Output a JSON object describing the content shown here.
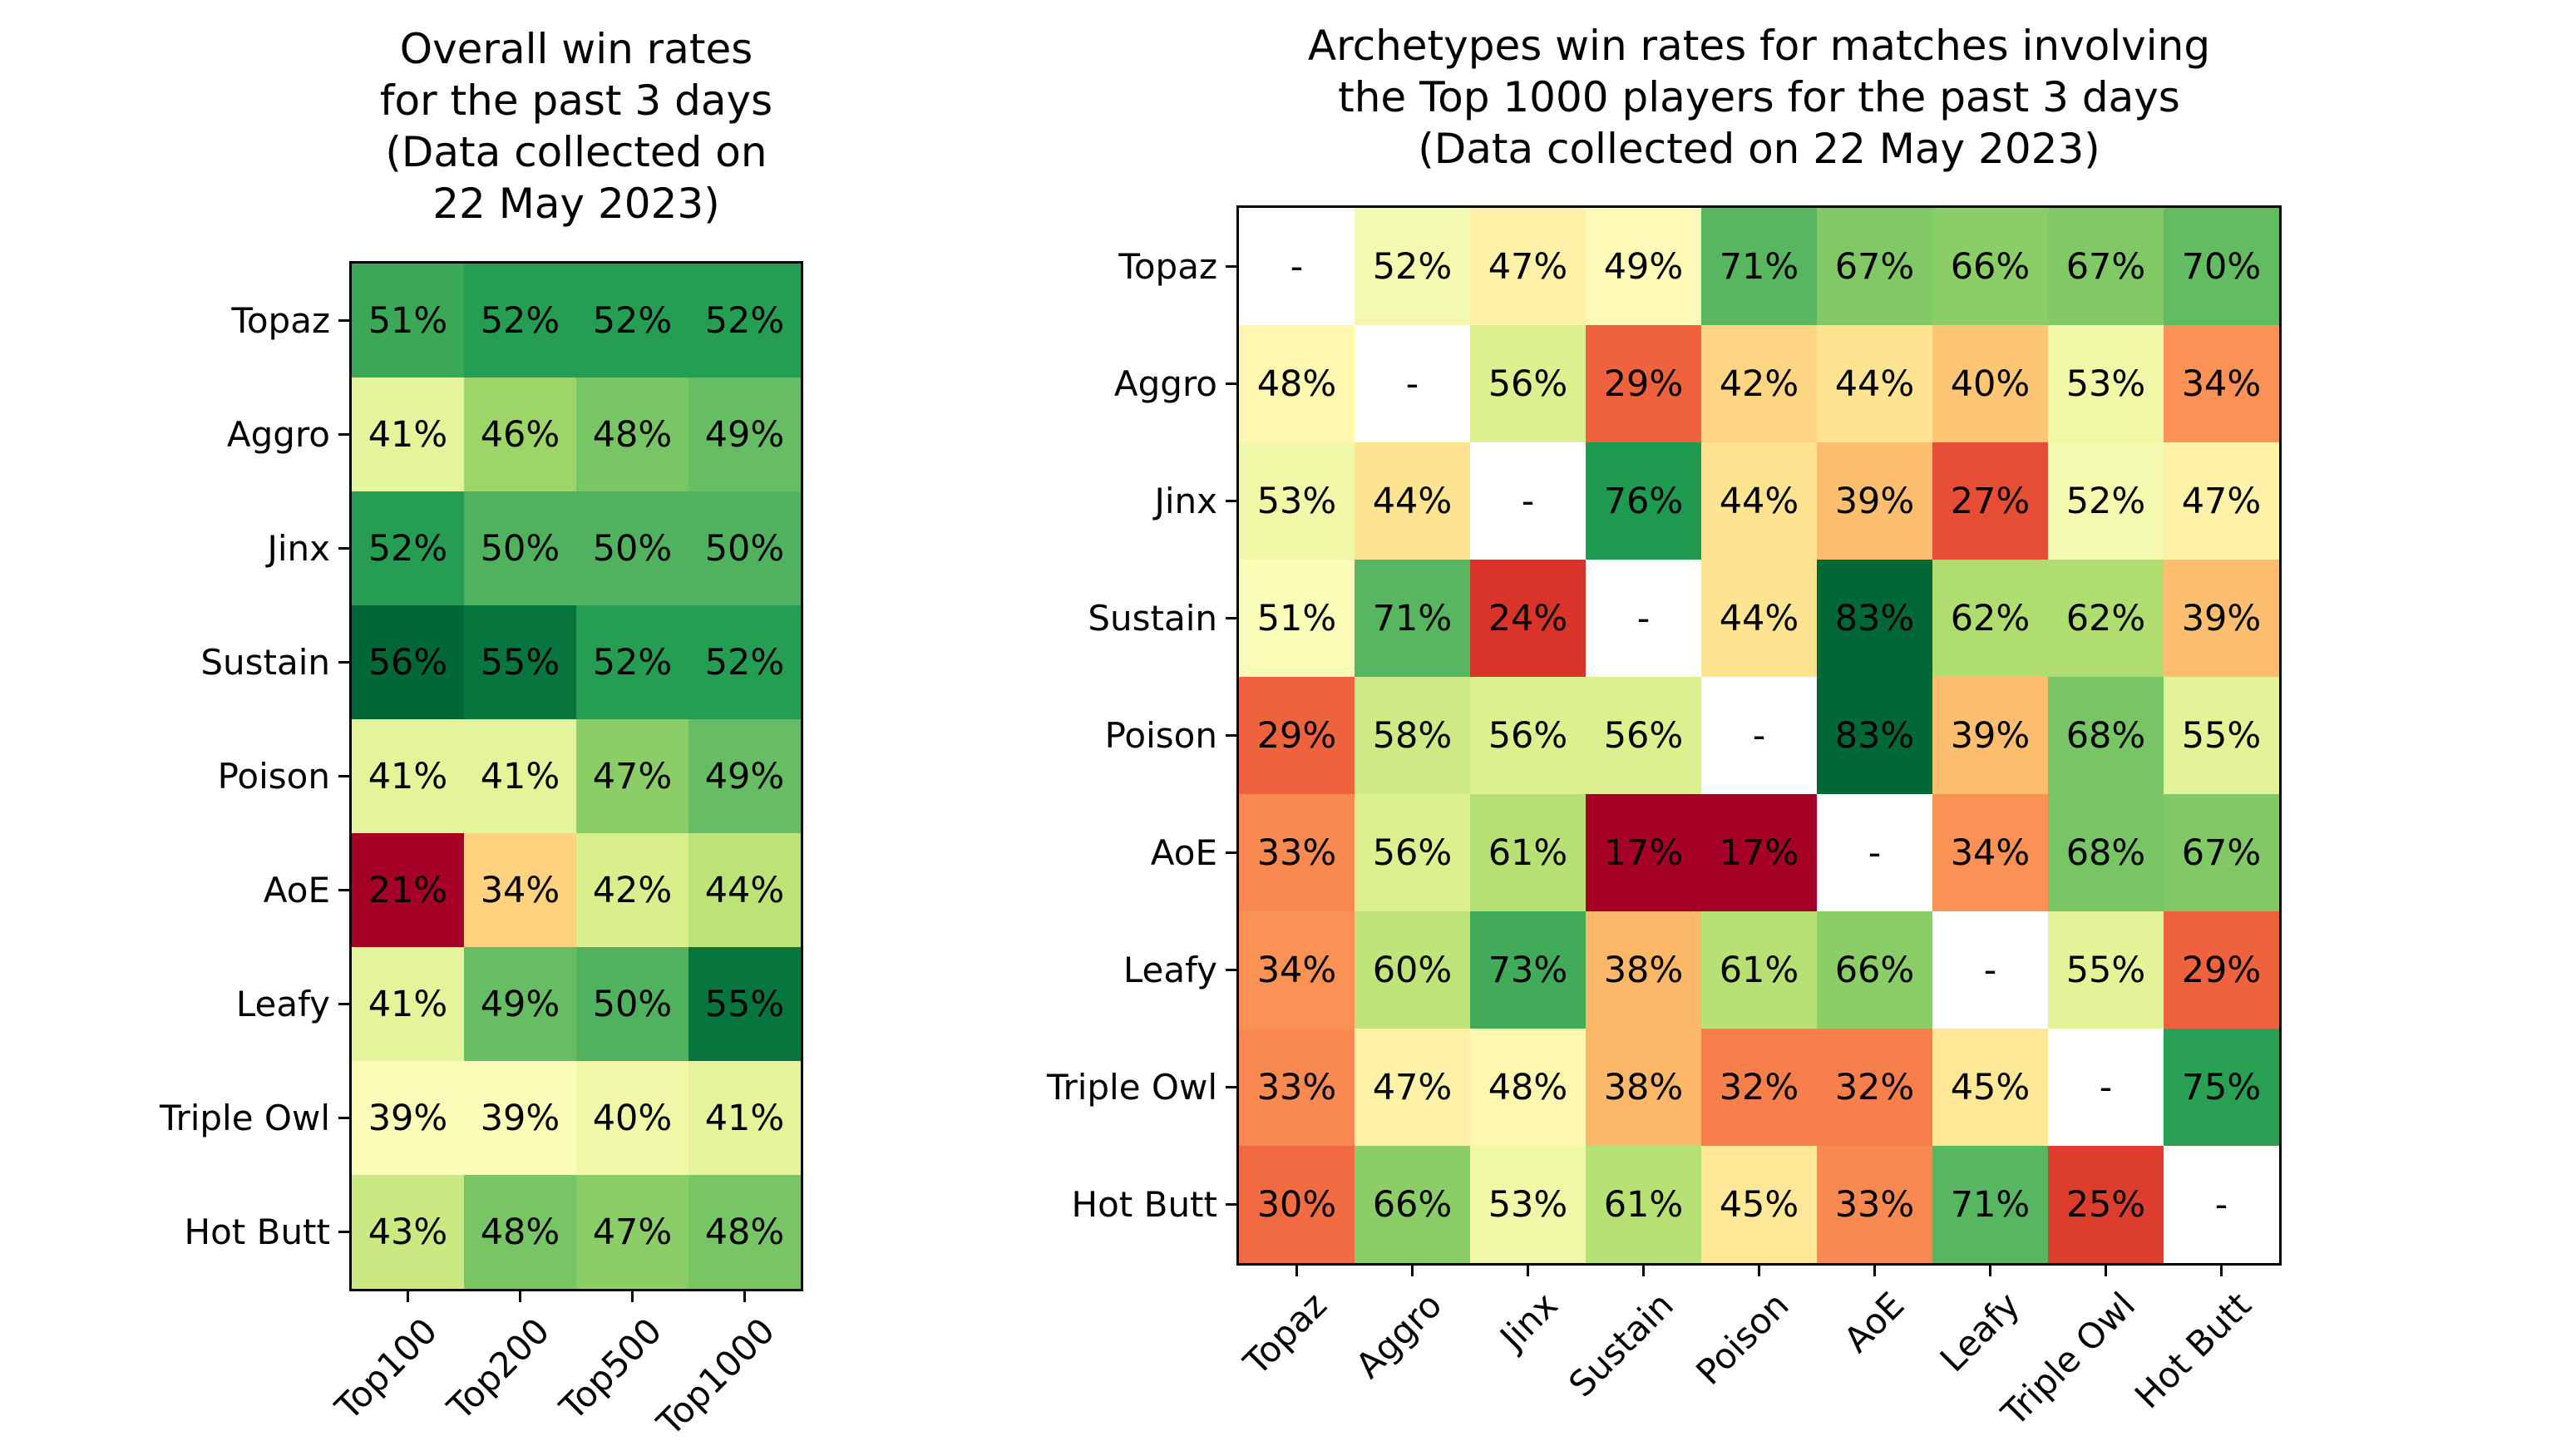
{
  "page": {
    "background": "#ffffff",
    "text_color": "#000000"
  },
  "chart_data": [
    {
      "type": "heatmap",
      "title_lines": [
        "Overall win rates",
        "for the past 3 days",
        "(Data collected on",
        "22 May 2023)"
      ],
      "rows": [
        "Topaz",
        "Aggro",
        "Jinx",
        "Sustain",
        "Poison",
        "AoE",
        "Leafy",
        "Triple Owl",
        "Hot Butt"
      ],
      "columns": [
        "Top100",
        "Top200",
        "Top500",
        "Top1000"
      ],
      "unit": "%",
      "values": [
        [
          51,
          52,
          52,
          52
        ],
        [
          41,
          46,
          48,
          49
        ],
        [
          52,
          50,
          50,
          50
        ],
        [
          56,
          55,
          52,
          52
        ],
        [
          41,
          41,
          47,
          49
        ],
        [
          21,
          34,
          42,
          44
        ],
        [
          41,
          49,
          50,
          55
        ],
        [
          39,
          39,
          40,
          41
        ],
        [
          43,
          48,
          47,
          48
        ]
      ],
      "vmin": 21,
      "vmax": 56,
      "colormap": "RdYlGn",
      "colormap_anchors": [
        "#a50026",
        "#d73027",
        "#f46d43",
        "#fdae61",
        "#fee08b",
        "#ffffbf",
        "#d9ef8b",
        "#a6d96a",
        "#66bd63",
        "#1a9850",
        "#006837"
      ],
      "missing_label": "-",
      "missing_color": "#ffffff",
      "cell_text_color": "#000000",
      "grid": false,
      "legend": "none",
      "x_tick_rotation_deg": 45
    },
    {
      "type": "heatmap",
      "title_lines": [
        "Archetypes win rates for matches involving",
        "the Top 1000 players for the past 3 days",
        "(Data collected on 22 May 2023)"
      ],
      "rows": [
        "Topaz",
        "Aggro",
        "Jinx",
        "Sustain",
        "Poison",
        "AoE",
        "Leafy",
        "Triple Owl",
        "Hot Butt"
      ],
      "columns": [
        "Topaz",
        "Aggro",
        "Jinx",
        "Sustain",
        "Poison",
        "AoE",
        "Leafy",
        "Triple Owl",
        "Hot Butt"
      ],
      "unit": "%",
      "values": [
        [
          null,
          52,
          47,
          49,
          71,
          67,
          66,
          67,
          70
        ],
        [
          48,
          null,
          56,
          29,
          42,
          44,
          40,
          53,
          34
        ],
        [
          53,
          44,
          null,
          76,
          44,
          39,
          27,
          52,
          47
        ],
        [
          51,
          71,
          24,
          null,
          44,
          83,
          62,
          62,
          39
        ],
        [
          29,
          58,
          56,
          56,
          null,
          83,
          39,
          68,
          55
        ],
        [
          33,
          56,
          61,
          17,
          17,
          null,
          34,
          68,
          67
        ],
        [
          34,
          60,
          73,
          38,
          61,
          66,
          null,
          55,
          29
        ],
        [
          33,
          47,
          48,
          38,
          32,
          32,
          45,
          null,
          75
        ],
        [
          30,
          66,
          53,
          61,
          45,
          33,
          71,
          25,
          null
        ]
      ],
      "vmin": 17,
      "vmax": 83,
      "colormap": "RdYlGn",
      "colormap_anchors": [
        "#a50026",
        "#d73027",
        "#f46d43",
        "#fdae61",
        "#fee08b",
        "#ffffbf",
        "#d9ef8b",
        "#a6d96a",
        "#66bd63",
        "#1a9850",
        "#006837"
      ],
      "missing_label": "-",
      "missing_color": "#ffffff",
      "cell_text_color": "#000000",
      "grid": false,
      "legend": "none",
      "x_tick_rotation_deg": 45
    }
  ]
}
